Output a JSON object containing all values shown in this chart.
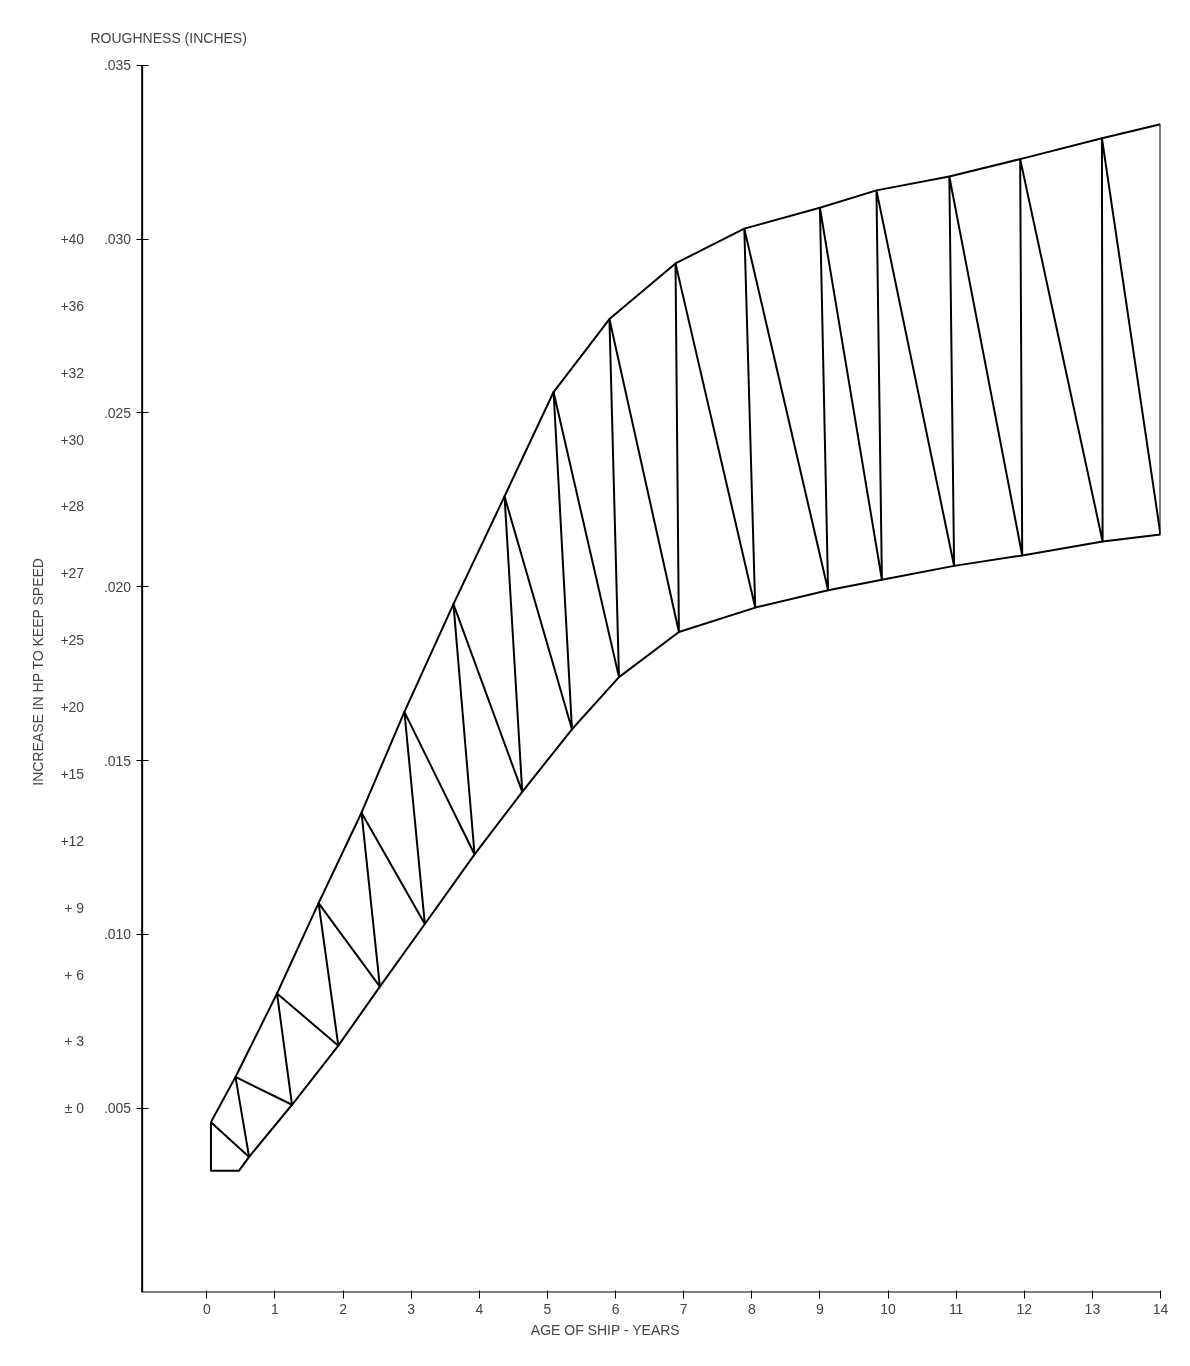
{
  "chart_data": {
    "type": "line",
    "xlabel": "AGE OF SHIP - YEARS",
    "ylabel": "ROUGHNESS (INCHES)",
    "y2label": "INCREASE IN HP TO KEEP SPEED",
    "xlim": [
      -0.95,
      14
    ],
    "xticks": [
      0,
      1,
      2,
      3,
      4,
      5,
      6,
      7,
      8,
      9,
      10,
      11,
      12,
      13,
      14
    ],
    "ylim": [
      -0.0003,
      0.035
    ],
    "yticks": [
      {
        "value": 0.005,
        "label": ".005"
      },
      {
        "value": 0.01,
        "label": ".010"
      },
      {
        "value": 0.015,
        "label": ".015"
      },
      {
        "value": 0.02,
        "label": ".020"
      },
      {
        "value": 0.025,
        "label": ".025"
      },
      {
        "value": 0.03,
        "label": ".030"
      },
      {
        "value": 0.035,
        "label": ".035"
      }
    ],
    "annotations": [
      "+40",
      "+36",
      "+32",
      "+30",
      "+28",
      "+27",
      "+25",
      "+20",
      "+15",
      "+12",
      "+ 9",
      "+ 6",
      "+ 3",
      "± 0"
    ],
    "line_style": "solid",
    "series": [
      {
        "color": "#000000",
        "x": [
          0.06,
          0.42,
          1.03,
          1.64,
          2.27,
          2.9,
          3.62,
          4.37,
          5.09,
          5.91,
          6.88,
          7.89,
          9.0,
          9.83,
          10.9,
          11.94,
          13.14,
          14
        ],
        "values": [
          0.0046,
          0.0059,
          0.0083,
          0.0109,
          0.0135,
          0.0164,
          0.0195,
          0.0226,
          0.0256,
          0.0277,
          0.0293,
          0.0303,
          0.0309,
          0.0314,
          0.0318,
          0.0323,
          0.0329,
          0.0333
        ]
      },
      {
        "color": "#000000",
        "x": [
          0.06,
          0.06,
          0.47,
          0.62,
          1.25,
          1.93,
          2.54,
          3.2,
          3.93,
          4.63,
          5.36,
          6.05,
          6.93,
          8.05,
          9.12,
          9.91,
          10.97,
          11.97,
          13.15,
          14,
          14
        ],
        "values": [
          0.0046,
          0.0032,
          0.0032,
          0.0036,
          0.0051,
          0.0068,
          0.0085,
          0.0103,
          0.0123,
          0.0141,
          0.0159,
          0.0174,
          0.0187,
          0.0194,
          0.0199,
          0.0202,
          0.0206,
          0.0209,
          0.0213,
          0.0215,
          0.0333
        ]
      },
      {
        "color": "#000000",
        "x": [
          0.06,
          0.62,
          0.42,
          1.25,
          1.03,
          1.93,
          1.64,
          2.54,
          2.27,
          3.2,
          2.9,
          3.93,
          3.62,
          4.63,
          4.37,
          5.36,
          5.09,
          6.05,
          5.91,
          6.93,
          6.88,
          8.05,
          7.89,
          9.12,
          9.0,
          9.91,
          9.83,
          10.97,
          10.9,
          11.97,
          11.94,
          13.15,
          13.14,
          14
        ],
        "values": [
          0.0046,
          0.0036,
          0.0059,
          0.0051,
          0.0083,
          0.0068,
          0.0109,
          0.0085,
          0.0135,
          0.0103,
          0.0164,
          0.0123,
          0.0195,
          0.0141,
          0.0226,
          0.0159,
          0.0256,
          0.0174,
          0.0277,
          0.0187,
          0.0293,
          0.0194,
          0.0303,
          0.0199,
          0.0309,
          0.0202,
          0.0314,
          0.0206,
          0.0318,
          0.0209,
          0.0323,
          0.0213,
          0.0329,
          0.0215
        ]
      }
    ]
  }
}
